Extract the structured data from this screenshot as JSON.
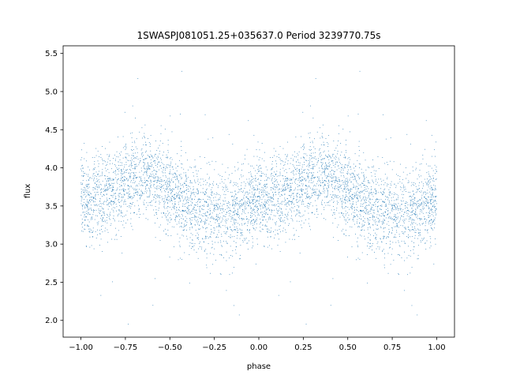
{
  "chart_data": {
    "type": "scatter",
    "title": "1SWASPJ081051.25+035637.0 Period 3239770.75s",
    "xlabel": "phase",
    "ylabel": "flux",
    "xlim": [
      -1.1,
      1.1
    ],
    "ylim": [
      1.78,
      5.6
    ],
    "xticks": [
      -1.0,
      -0.75,
      -0.5,
      -0.25,
      0.0,
      0.25,
      0.5,
      0.75,
      1.0
    ],
    "xtick_labels": [
      "−1.00",
      "−0.75",
      "−0.50",
      "−0.25",
      "0.00",
      "0.25",
      "0.50",
      "0.75",
      "1.00"
    ],
    "yticks": [
      2.0,
      2.5,
      3.0,
      3.5,
      4.0,
      4.5,
      5.0,
      5.5
    ],
    "ytick_labels": [
      "2.0",
      "2.5",
      "3.0",
      "3.5",
      "4.0",
      "4.5",
      "5.0",
      "5.5"
    ],
    "grid": false,
    "legend": "none",
    "marker_color": "#1f77b4",
    "series": [
      {
        "profile_phase": [
          0.0,
          0.05,
          0.1,
          0.15,
          0.2,
          0.25,
          0.3,
          0.35,
          0.4,
          0.45,
          0.5,
          0.55,
          0.6,
          0.65,
          0.7,
          0.75,
          0.8,
          0.85,
          0.9,
          0.95,
          1.0
        ],
        "profile_flux": [
          3.6,
          3.6,
          3.6,
          3.65,
          3.75,
          3.85,
          3.9,
          3.9,
          3.85,
          3.8,
          3.7,
          3.6,
          3.5,
          3.45,
          3.4,
          3.4,
          3.4,
          3.4,
          3.45,
          3.5,
          3.6
        ],
        "scatter_sigma": 0.28,
        "flux_min": 1.95,
        "flux_max": 5.4
      }
    ]
  }
}
